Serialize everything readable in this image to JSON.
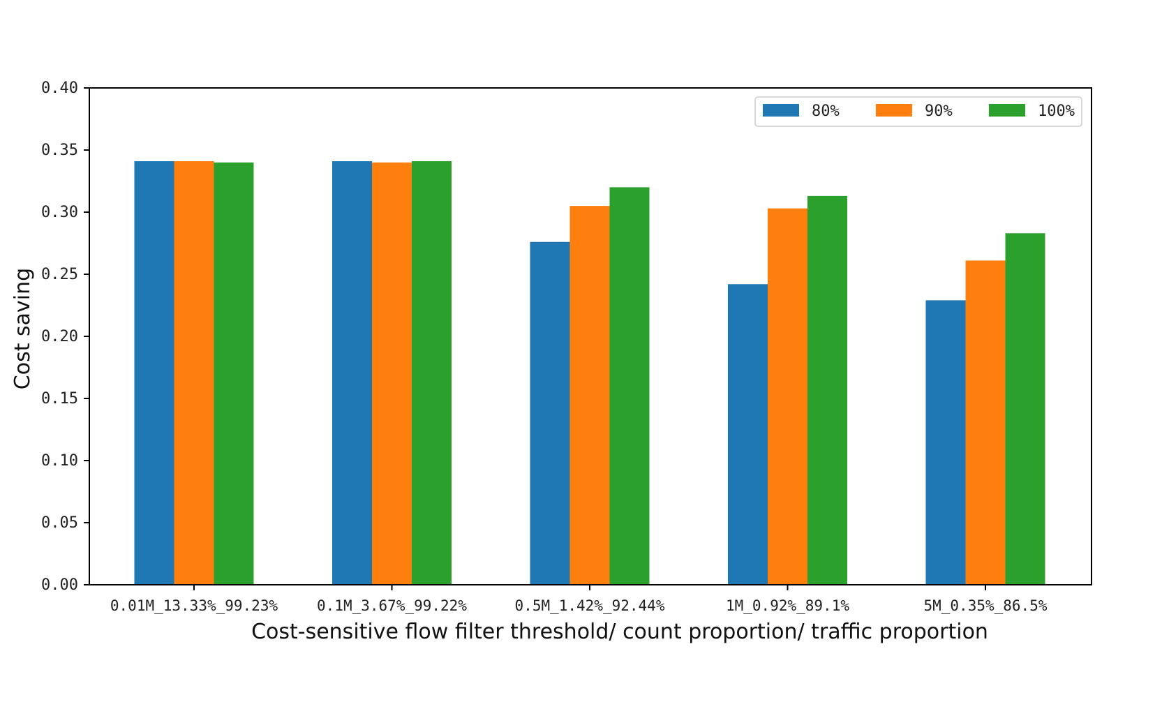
{
  "chart_data": {
    "type": "bar",
    "xlabel": "Cost-sensitive flow filter threshold/ count proportion/ traffic proportion",
    "ylabel": "Cost saving",
    "ylim": [
      0,
      0.4
    ],
    "yticks": [
      "0.00",
      "0.05",
      "0.10",
      "0.15",
      "0.20",
      "0.25",
      "0.30",
      "0.35",
      "0.40"
    ],
    "categories": [
      "0.01M_13.33%_99.23%",
      "0.1M_3.67%_99.22%",
      "0.5M_1.42%_92.44%",
      "1M_0.92%_89.1%",
      "5M_0.35%_86.5%"
    ],
    "series": [
      {
        "name": "80%",
        "color": "#1f77b4",
        "values": [
          0.341,
          0.341,
          0.276,
          0.242,
          0.229
        ]
      },
      {
        "name": "90%",
        "color": "#ff7f0e",
        "values": [
          0.341,
          0.34,
          0.305,
          0.303,
          0.261
        ]
      },
      {
        "name": "100%",
        "color": "#2ca02c",
        "values": [
          0.34,
          0.341,
          0.32,
          0.313,
          0.283
        ]
      }
    ],
    "legend_position": "top-right",
    "grid": false
  }
}
